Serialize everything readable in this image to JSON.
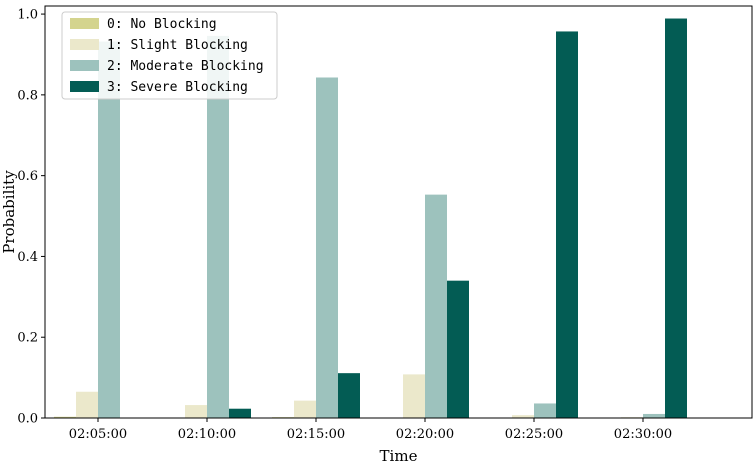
{
  "chart_data": {
    "type": "bar",
    "xlabel": "Time",
    "ylabel": "Probability",
    "categories": [
      "02:05:00",
      "02:10:00",
      "02:15:00",
      "02:20:00",
      "02:25:00",
      "02:30:00"
    ],
    "ylim": [
      0,
      1.02
    ],
    "yticks": [
      "0.0",
      "0.2",
      "0.4",
      "0.6",
      "0.8",
      "1.0"
    ],
    "grid": false,
    "legend_position": "top-left",
    "series": [
      {
        "name": "0: No Blocking",
        "color": "#d4d48e",
        "values": [
          0.003,
          0.0,
          0.002,
          0.0,
          0.0,
          0.0
        ]
      },
      {
        "name": "1: Slight Blocking",
        "color": "#ebe8cb",
        "values": [
          0.065,
          0.032,
          0.043,
          0.108,
          0.007,
          0.002
        ]
      },
      {
        "name": "2: Moderate Blocking",
        "color": "#9dc2bd",
        "values": [
          0.932,
          0.946,
          0.843,
          0.553,
          0.036,
          0.01
        ]
      },
      {
        "name": "3: Severe Blocking",
        "color": "#035c54",
        "values": [
          0.0,
          0.023,
          0.111,
          0.34,
          0.957,
          0.989
        ]
      }
    ]
  }
}
